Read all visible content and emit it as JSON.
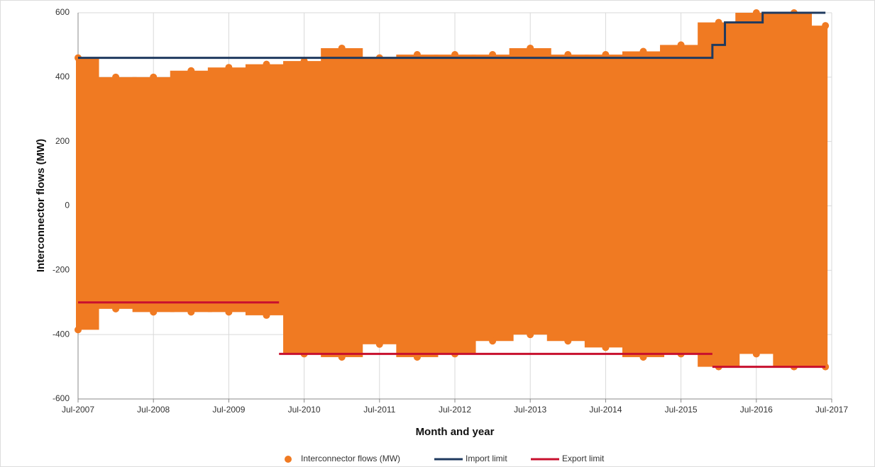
{
  "chart_data": {
    "type": "scatter",
    "x_label": "Month and year",
    "y_label": "Interconnector flows (MW)",
    "xlim": [
      "2007-07",
      "2017-07"
    ],
    "xticks": [
      {
        "value": "2007-07",
        "label": "Jul-2007"
      },
      {
        "value": "2008-07",
        "label": "Jul-2008"
      },
      {
        "value": "2009-07",
        "label": "Jul-2009"
      },
      {
        "value": "2010-07",
        "label": "Jul-2010"
      },
      {
        "value": "2011-07",
        "label": "Jul-2011"
      },
      {
        "value": "2012-07",
        "label": "Jul-2012"
      },
      {
        "value": "2013-07",
        "label": "Jul-2013"
      },
      {
        "value": "2014-07",
        "label": "Jul-2014"
      },
      {
        "value": "2015-07",
        "label": "Jul-2015"
      },
      {
        "value": "2016-07",
        "label": "Jul-2016"
      },
      {
        "value": "2017-07",
        "label": "Jul-2017"
      }
    ],
    "ylim": [
      -600,
      600
    ],
    "yticks": [
      -600,
      -400,
      -200,
      0,
      200,
      400,
      600
    ],
    "grid": true,
    "legend": "bottom",
    "flows": {
      "name": "Interconnector flows (MW)",
      "color": "#f07a22",
      "x": [
        "2007-07",
        "2008-01",
        "2008-07",
        "2009-01",
        "2009-07",
        "2010-01",
        "2010-07",
        "2011-01",
        "2011-07",
        "2012-01",
        "2012-07",
        "2013-01",
        "2013-07",
        "2014-01",
        "2014-07",
        "2015-01",
        "2015-07",
        "2016-01",
        "2016-07",
        "2017-01",
        "2017-06"
      ],
      "high": [
        460,
        400,
        400,
        420,
        430,
        440,
        450,
        490,
        460,
        470,
        470,
        470,
        490,
        470,
        470,
        480,
        500,
        570,
        600,
        600,
        560
      ],
      "low": [
        -385,
        -320,
        -330,
        -330,
        -330,
        -340,
        -460,
        -470,
        -430,
        -470,
        -460,
        -420,
        -400,
        -420,
        -440,
        -470,
        -460,
        -500,
        -460,
        -500,
        -500
      ]
    },
    "series": [
      {
        "name": "Import limit",
        "color": "#1f3a5f",
        "x": [
          "2007-07",
          "2015-12",
          "2015-12",
          "2016-02",
          "2016-02",
          "2016-08",
          "2016-08",
          "2017-06"
        ],
        "values": [
          460,
          460,
          500,
          500,
          570,
          570,
          600,
          600
        ]
      },
      {
        "name": "Export limit",
        "color": "#c8102e",
        "x": [
          "2007-07",
          "2010-03",
          "2010-03",
          "2010-03",
          "2015-12",
          "2015-12",
          "2015-12",
          "2017-06"
        ],
        "values": [
          -300,
          -300,
          null,
          -460,
          -460,
          null,
          -500,
          -500
        ]
      }
    ]
  }
}
